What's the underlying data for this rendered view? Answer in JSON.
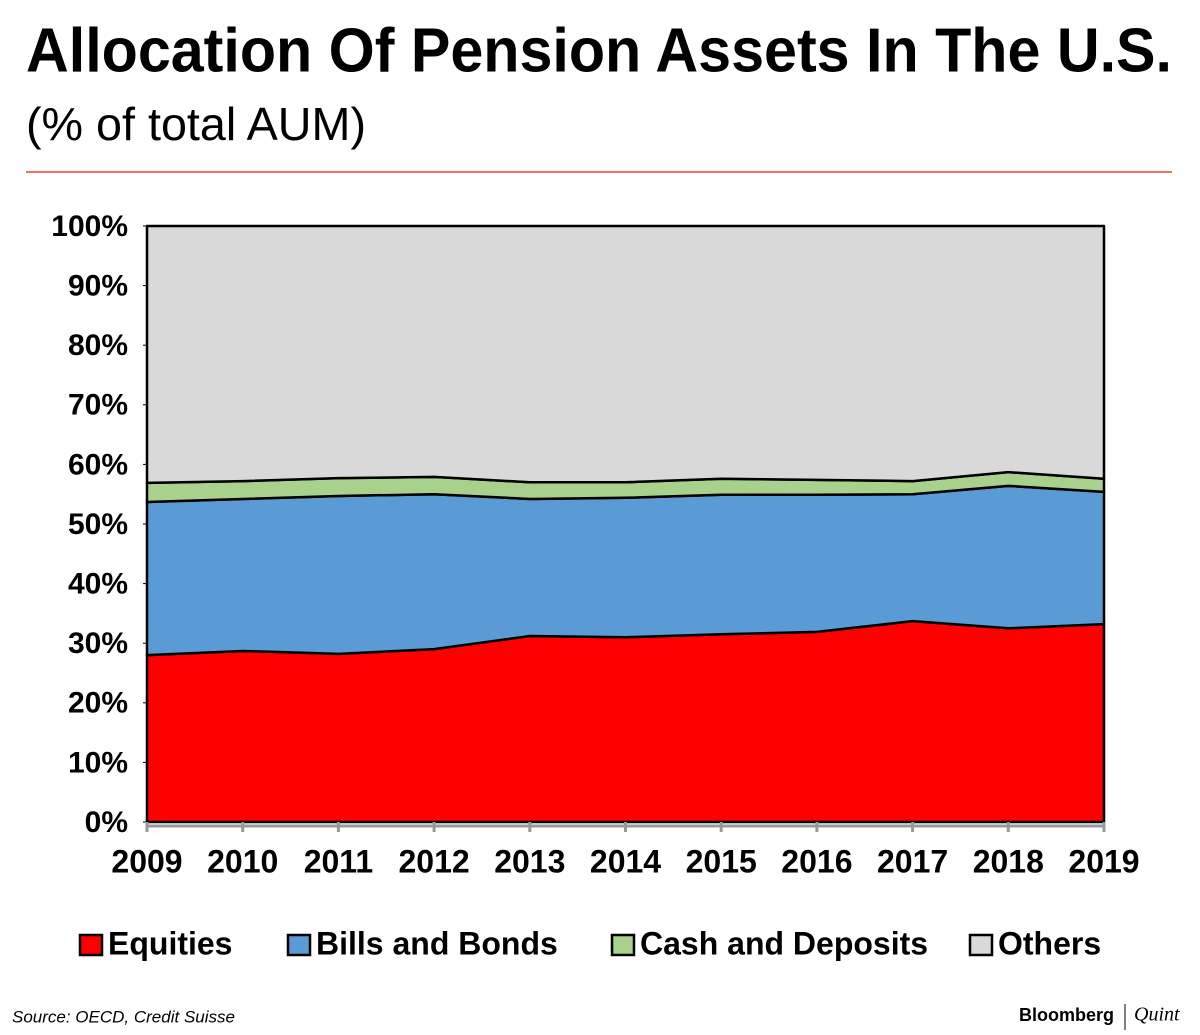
{
  "chart_data": {
    "type": "stacked-area",
    "title": "Allocation Of Pension Assets In The U.S.",
    "subtitle": "(% of total AUM)",
    "categories": [
      "2009",
      "2010",
      "2011",
      "2012",
      "2013",
      "2014",
      "2015",
      "2016",
      "2017",
      "2018",
      "2019"
    ],
    "series": [
      {
        "name": "Equities",
        "color": "#ff0000",
        "values": [
          28.0,
          28.7,
          28.2,
          29.0,
          31.2,
          31.0,
          31.5,
          31.9,
          33.7,
          32.5,
          33.2
        ]
      },
      {
        "name": "Bills and Bonds",
        "color": "#5b9bd5",
        "values": [
          25.7,
          25.5,
          26.5,
          26.0,
          23.0,
          23.4,
          23.4,
          23.0,
          21.3,
          23.9,
          22.2
        ]
      },
      {
        "name": "Cash and Deposits",
        "color": "#a9d18e",
        "values": [
          3.2,
          3.0,
          3.0,
          2.9,
          2.8,
          2.6,
          2.7,
          2.5,
          2.2,
          2.3,
          2.2
        ]
      },
      {
        "name": "Others",
        "color": "#d9d9d9",
        "values": [
          43.1,
          42.8,
          42.3,
          42.1,
          43.0,
          43.0,
          42.4,
          42.6,
          42.8,
          41.3,
          42.4
        ]
      }
    ],
    "ylim": [
      0,
      100
    ],
    "yticks": [
      {
        "value": 0,
        "label": "0%"
      },
      {
        "value": 10,
        "label": "10%"
      },
      {
        "value": 20,
        "label": "20%"
      },
      {
        "value": 30,
        "label": "30%"
      },
      {
        "value": 40,
        "label": "40%"
      },
      {
        "value": 50,
        "label": "50%"
      },
      {
        "value": 60,
        "label": "60%"
      },
      {
        "value": 70,
        "label": "70%"
      },
      {
        "value": 80,
        "label": "80%"
      },
      {
        "value": 90,
        "label": "90%"
      },
      {
        "value": 100,
        "label": "100%"
      }
    ],
    "legend": "bottom",
    "source": "Source: OECD, Credit Suisse",
    "brand": "Bloomberg",
    "brand_suffix": "Quint"
  }
}
